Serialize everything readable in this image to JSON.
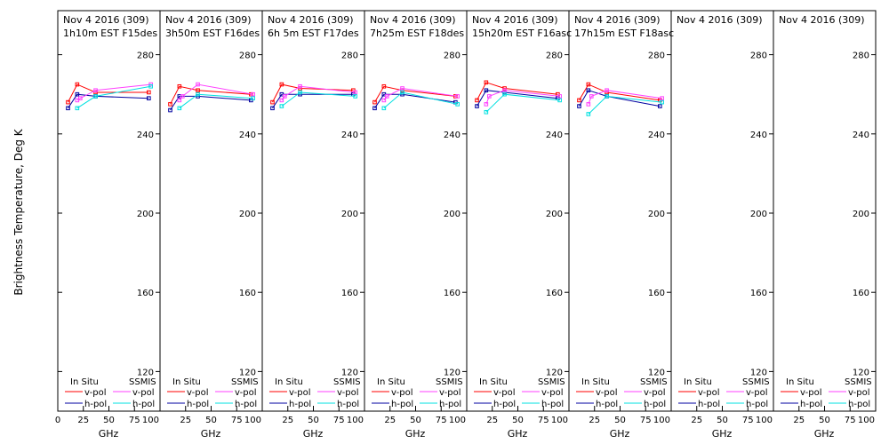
{
  "ylabel": "Brightness Temperature, Deg K",
  "xlabel": "GHz",
  "colors": {
    "insitu_v": "#ff0000",
    "insitu_h": "#0000a0",
    "ssmis_v": "#ff40ff",
    "ssmis_h": "#00e0e0"
  },
  "legend": {
    "insitu_header": "In Situ",
    "ssmis_header": "SSMIS",
    "vpol": "v-pol",
    "hpol": "h-pol"
  },
  "chart_data": {
    "type": "line",
    "x_range": [
      0,
      100
    ],
    "y_range": [
      100,
      300
    ],
    "y_ticks": [
      120,
      160,
      200,
      240,
      280
    ],
    "x_tick_labels": [
      [
        "0",
        "25",
        "50",
        "75",
        "100"
      ],
      [
        "25",
        "50",
        "75",
        "100"
      ],
      [
        "25",
        "50",
        "75",
        "100"
      ],
      [
        "25",
        "50",
        "75",
        "100"
      ],
      [
        "25",
        "50",
        "75",
        "100"
      ],
      [
        "25",
        "50",
        "75",
        "100"
      ],
      [
        "25",
        "50",
        "75",
        "100"
      ],
      [
        "25",
        "50",
        "75",
        "100"
      ]
    ],
    "panels": [
      {
        "date": "Nov 4 2016 (309)",
        "subtitle": "1h10m EST F15des",
        "series": [
          {
            "name": "In Situ v-pol",
            "x": [
              10,
              19,
              37,
              89
            ],
            "y": [
              256,
              265,
              261,
              261
            ]
          },
          {
            "name": "In Situ h-pol",
            "x": [
              10,
              19,
              37,
              89
            ],
            "y": [
              253,
              260,
              259,
              258
            ]
          },
          {
            "name": "SSMIS v-pol",
            "x": [
              19,
              22,
              37,
              91
            ],
            "y": [
              257,
              258,
              262,
              265
            ]
          },
          {
            "name": "SSMIS h-pol",
            "x": [
              19,
              37,
              91
            ],
            "y": [
              253,
              259,
              264
            ]
          }
        ]
      },
      {
        "date": "Nov 4 2016 (309)",
        "subtitle": "3h50m EST F16des",
        "series": [
          {
            "name": "In Situ v-pol",
            "x": [
              10,
              19,
              37,
              89
            ],
            "y": [
              255,
              264,
              262,
              260
            ]
          },
          {
            "name": "In Situ h-pol",
            "x": [
              10,
              19,
              37,
              89
            ],
            "y": [
              252,
              259,
              259,
              257
            ]
          },
          {
            "name": "SSMIS v-pol",
            "x": [
              19,
              22,
              37,
              91
            ],
            "y": [
              257,
              259,
              265,
              260
            ]
          },
          {
            "name": "SSMIS h-pol",
            "x": [
              19,
              37,
              91
            ],
            "y": [
              253,
              260,
              258
            ]
          }
        ]
      },
      {
        "date": "Nov 4 2016 (309)",
        "subtitle": "6h 5m EST F17des",
        "series": [
          {
            "name": "In Situ v-pol",
            "x": [
              10,
              19,
              37,
              89
            ],
            "y": [
              256,
              265,
              263,
              262
            ]
          },
          {
            "name": "In Situ h-pol",
            "x": [
              10,
              19,
              37,
              89
            ],
            "y": [
              253,
              260,
              260,
              260
            ]
          },
          {
            "name": "SSMIS v-pol",
            "x": [
              19,
              22,
              37,
              91
            ],
            "y": [
              257,
              259,
              264,
              261
            ]
          },
          {
            "name": "SSMIS h-pol",
            "x": [
              19,
              37,
              91
            ],
            "y": [
              254,
              261,
              259
            ]
          }
        ]
      },
      {
        "date": "Nov 4 2016 (309)",
        "subtitle": "7h25m EST F18des",
        "series": [
          {
            "name": "In Situ v-pol",
            "x": [
              10,
              19,
              37,
              89
            ],
            "y": [
              256,
              264,
              262,
              259
            ]
          },
          {
            "name": "In Situ h-pol",
            "x": [
              10,
              19,
              37,
              89
            ],
            "y": [
              253,
              260,
              260,
              256
            ]
          },
          {
            "name": "SSMIS v-pol",
            "x": [
              19,
              22,
              37,
              91
            ],
            "y": [
              257,
              259,
              263,
              259
            ]
          },
          {
            "name": "SSMIS h-pol",
            "x": [
              19,
              37,
              91
            ],
            "y": [
              253,
              261,
              255
            ]
          }
        ]
      },
      {
        "date": "Nov 4 2016 (309)",
        "subtitle": "15h20m EST F16asc",
        "series": [
          {
            "name": "In Situ v-pol",
            "x": [
              10,
              19,
              37,
              89
            ],
            "y": [
              257,
              266,
              263,
              260
            ]
          },
          {
            "name": "In Situ h-pol",
            "x": [
              10,
              19,
              37,
              89
            ],
            "y": [
              254,
              262,
              261,
              258
            ]
          },
          {
            "name": "SSMIS v-pol",
            "x": [
              19,
              22,
              37,
              91
            ],
            "y": [
              255,
              259,
              262,
              259
            ]
          },
          {
            "name": "SSMIS h-pol",
            "x": [
              19,
              37,
              91
            ],
            "y": [
              251,
              260,
              257
            ]
          }
        ]
      },
      {
        "date": "Nov 4 2016 (309)",
        "subtitle": "17h15m EST F18asc",
        "series": [
          {
            "name": "In Situ v-pol",
            "x": [
              10,
              19,
              37,
              89
            ],
            "y": [
              257,
              265,
              261,
              257
            ]
          },
          {
            "name": "In Situ h-pol",
            "x": [
              10,
              19,
              37,
              89
            ],
            "y": [
              254,
              262,
              259,
              254
            ]
          },
          {
            "name": "SSMIS v-pol",
            "x": [
              19,
              22,
              37,
              91
            ],
            "y": [
              255,
              259,
              262,
              258
            ]
          },
          {
            "name": "SSMIS h-pol",
            "x": [
              19,
              37,
              91
            ],
            "y": [
              250,
              259,
              256
            ]
          }
        ]
      },
      {
        "date": "Nov 4 2016 (309)",
        "subtitle": "",
        "series": []
      },
      {
        "date": "Nov 4 2016 (309)",
        "subtitle": "",
        "series": []
      }
    ]
  }
}
